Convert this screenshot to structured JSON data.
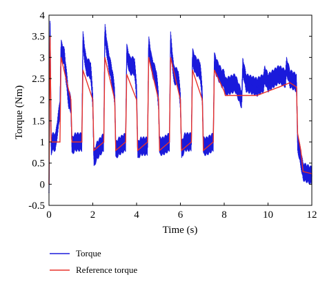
{
  "chart_data": {
    "type": "line",
    "xlabel": "Time (s)",
    "ylabel": "Torque (Nm)",
    "xlim": [
      0,
      12
    ],
    "ylim": [
      -0.5,
      4
    ],
    "xticks": [
      0,
      2,
      4,
      6,
      8,
      10,
      12
    ],
    "yticks": [
      -0.5,
      0,
      0.5,
      1,
      1.5,
      2,
      2.5,
      3,
      3.5,
      4
    ],
    "grid": false,
    "legend_position": "bottom-left, below plot",
    "series": [
      {
        "name": "Torque",
        "color": "#1a1adb",
        "x": [
          0.0,
          0.05,
          0.1,
          0.15,
          0.3,
          0.5,
          0.55,
          0.7,
          0.9,
          1.0,
          1.05,
          1.2,
          1.5,
          1.55,
          1.7,
          1.9,
          2.0,
          2.05,
          2.2,
          2.5,
          2.55,
          2.7,
          2.9,
          3.0,
          3.05,
          3.2,
          3.5,
          3.55,
          3.7,
          3.9,
          4.0,
          4.05,
          4.2,
          4.5,
          4.55,
          4.7,
          4.9,
          5.0,
          5.05,
          5.2,
          5.5,
          5.55,
          5.7,
          5.9,
          6.0,
          6.05,
          6.2,
          6.5,
          6.55,
          6.7,
          6.9,
          7.0,
          7.05,
          7.2,
          7.5,
          7.55,
          7.7,
          7.9,
          8.0,
          8.05,
          8.5,
          8.8,
          8.85,
          9.0,
          9.5,
          9.8,
          9.85,
          10.0,
          10.5,
          10.8,
          10.85,
          11.0,
          11.3,
          11.35,
          11.5,
          11.6,
          12.0
        ],
        "values": [
          -0.2,
          3.8,
          0.9,
          1.0,
          1.0,
          1.8,
          3.2,
          3.0,
          2.0,
          1.9,
          0.9,
          1.0,
          1.0,
          3.4,
          2.8,
          2.7,
          2.0,
          0.6,
          0.8,
          1.0,
          3.6,
          3.0,
          2.5,
          2.1,
          0.8,
          0.9,
          1.0,
          3.1,
          2.8,
          2.8,
          2.2,
          0.8,
          0.9,
          0.9,
          3.3,
          2.8,
          2.5,
          2.0,
          0.9,
          0.9,
          1.0,
          3.4,
          2.6,
          2.5,
          2.0,
          0.8,
          1.0,
          1.0,
          3.0,
          2.8,
          2.7,
          2.1,
          0.9,
          0.9,
          1.0,
          2.9,
          2.7,
          2.5,
          2.5,
          2.3,
          2.4,
          2.0,
          2.8,
          2.4,
          2.3,
          2.4,
          2.6,
          2.4,
          2.6,
          2.5,
          2.8,
          2.5,
          2.4,
          1.0,
          0.6,
          0.3,
          0.2
        ]
      },
      {
        "name": "Reference torque",
        "color": "#e8322a",
        "x": [
          0.0,
          0.05,
          0.1,
          0.5,
          0.55,
          1.0,
          1.05,
          1.5,
          1.55,
          2.0,
          2.05,
          2.5,
          2.55,
          3.0,
          3.05,
          3.5,
          3.55,
          4.0,
          4.05,
          4.5,
          4.55,
          5.0,
          5.05,
          5.5,
          5.55,
          6.0,
          6.05,
          6.5,
          6.55,
          7.0,
          7.05,
          7.5,
          7.55,
          8.0,
          8.05,
          8.5,
          9.0,
          9.5,
          10.0,
          10.5,
          11.0,
          11.3,
          11.35,
          11.5,
          11.6,
          12.0
        ],
        "values": [
          0.0,
          3.5,
          1.0,
          1.0,
          3.0,
          2.0,
          1.0,
          1.0,
          2.7,
          2.0,
          0.8,
          1.0,
          3.0,
          2.0,
          0.8,
          1.0,
          2.6,
          2.0,
          0.8,
          1.0,
          3.0,
          2.0,
          0.8,
          1.0,
          3.0,
          2.0,
          0.8,
          1.0,
          2.7,
          2.0,
          0.8,
          1.0,
          2.7,
          2.2,
          2.1,
          2.1,
          2.1,
          2.1,
          2.2,
          2.3,
          2.4,
          2.3,
          1.2,
          0.8,
          0.3,
          0.25
        ]
      }
    ]
  }
}
